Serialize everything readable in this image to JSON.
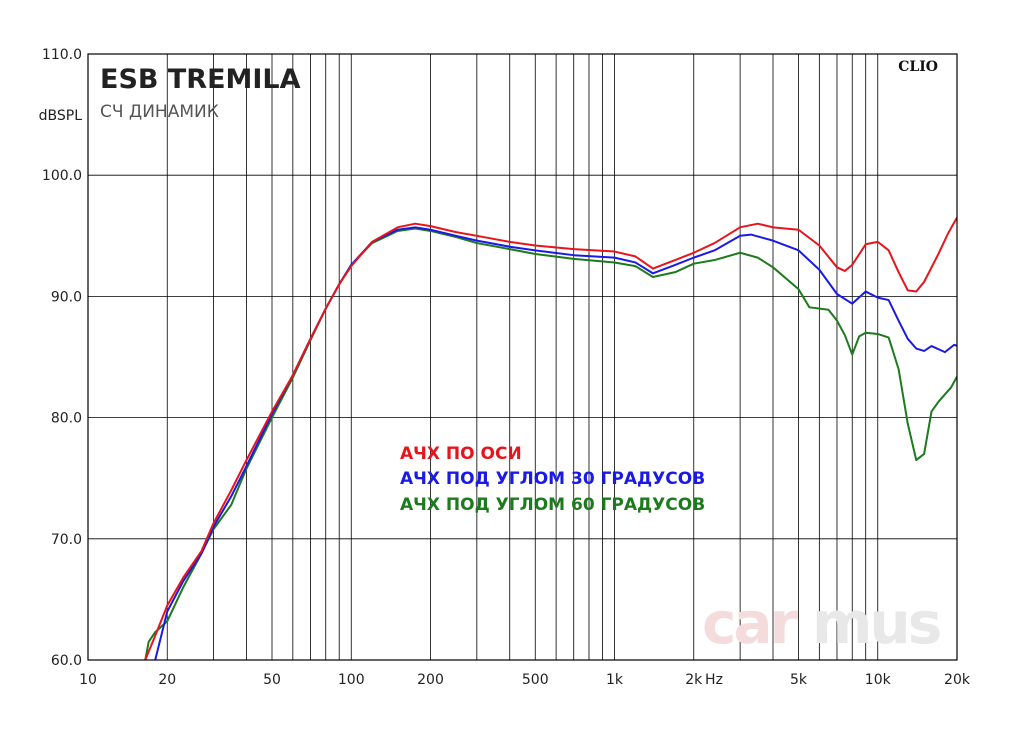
{
  "chart_data": {
    "type": "line",
    "title": "ESB TREMILA",
    "subtitle": "СЧ ДИНАМИК",
    "ylabel": "dBSPL",
    "xunit": "Hz",
    "brand": "CLIO",
    "watermark": [
      "car",
      "mus"
    ],
    "x_scale": "log",
    "xlim": [
      10,
      20000
    ],
    "ylim": [
      60,
      110
    ],
    "x_ticks": [
      10,
      20,
      50,
      100,
      200,
      500,
      1000,
      2000,
      5000,
      10000,
      20000
    ],
    "x_tick_labels": [
      "10",
      "20",
      "50",
      "100",
      "200",
      "500",
      "1k",
      "2k",
      "5k",
      "10k",
      "20k"
    ],
    "y_ticks": [
      60,
      70,
      80,
      90,
      100,
      110
    ],
    "y_tick_labels": [
      "60.0",
      "70.0",
      "80.0",
      "90.0",
      "100.0",
      "110.0"
    ],
    "grid": true,
    "series": [
      {
        "name": "АЧХ ПО ОСИ",
        "color": "#e8141b",
        "points": [
          [
            16.5,
            60
          ],
          [
            18,
            62
          ],
          [
            20,
            64.5
          ],
          [
            23,
            66.8
          ],
          [
            27,
            69
          ],
          [
            30,
            71.3
          ],
          [
            35,
            74
          ],
          [
            40,
            76.5
          ],
          [
            50,
            80.5
          ],
          [
            60,
            83.5
          ],
          [
            70,
            86.5
          ],
          [
            80,
            89
          ],
          [
            90,
            91
          ],
          [
            100,
            92.5
          ],
          [
            120,
            94.5
          ],
          [
            150,
            95.7
          ],
          [
            175,
            96
          ],
          [
            200,
            95.8
          ],
          [
            250,
            95.3
          ],
          [
            300,
            95
          ],
          [
            400,
            94.5
          ],
          [
            500,
            94.2
          ],
          [
            700,
            93.9
          ],
          [
            1000,
            93.7
          ],
          [
            1200,
            93.3
          ],
          [
            1400,
            92.3
          ],
          [
            1700,
            93
          ],
          [
            2000,
            93.6
          ],
          [
            2400,
            94.4
          ],
          [
            3000,
            95.7
          ],
          [
            3500,
            96
          ],
          [
            4000,
            95.7
          ],
          [
            5000,
            95.5
          ],
          [
            6000,
            94.2
          ],
          [
            7000,
            92.4
          ],
          [
            7500,
            92.1
          ],
          [
            8000,
            92.6
          ],
          [
            9000,
            94.3
          ],
          [
            10000,
            94.5
          ],
          [
            11000,
            93.8
          ],
          [
            12000,
            92
          ],
          [
            13000,
            90.5
          ],
          [
            14000,
            90.4
          ],
          [
            15000,
            91.2
          ],
          [
            17000,
            93.5
          ],
          [
            18500,
            95.2
          ],
          [
            20000,
            96.5
          ],
          [
            22000,
            97
          ]
        ]
      },
      {
        "name": "АЧХ ПОД УГЛОМ 30 ГРАДУСОВ",
        "color": "#1a1ae8",
        "points": [
          [
            18,
            60
          ],
          [
            20,
            64
          ],
          [
            23,
            66.5
          ],
          [
            27,
            68.8
          ],
          [
            30,
            71
          ],
          [
            35,
            73.5
          ],
          [
            40,
            76
          ],
          [
            50,
            80.3
          ],
          [
            60,
            83.5
          ],
          [
            70,
            86.5
          ],
          [
            80,
            89
          ],
          [
            90,
            91
          ],
          [
            100,
            92.6
          ],
          [
            120,
            94.5
          ],
          [
            150,
            95.5
          ],
          [
            175,
            95.7
          ],
          [
            200,
            95.5
          ],
          [
            250,
            95
          ],
          [
            300,
            94.6
          ],
          [
            400,
            94.1
          ],
          [
            500,
            93.8
          ],
          [
            700,
            93.4
          ],
          [
            1000,
            93.2
          ],
          [
            1200,
            92.8
          ],
          [
            1400,
            91.9
          ],
          [
            1700,
            92.6
          ],
          [
            2000,
            93.2
          ],
          [
            2400,
            93.8
          ],
          [
            3000,
            95
          ],
          [
            3300,
            95.1
          ],
          [
            4000,
            94.6
          ],
          [
            5000,
            93.8
          ],
          [
            6000,
            92.2
          ],
          [
            7000,
            90.2
          ],
          [
            8000,
            89.4
          ],
          [
            9000,
            90.4
          ],
          [
            10000,
            89.9
          ],
          [
            11000,
            89.7
          ],
          [
            12000,
            88
          ],
          [
            13000,
            86.5
          ],
          [
            14000,
            85.7
          ],
          [
            15000,
            85.5
          ],
          [
            16000,
            85.9
          ],
          [
            18000,
            85.4
          ],
          [
            19500,
            86
          ],
          [
            21000,
            85.8
          ],
          [
            22000,
            84.6
          ]
        ]
      },
      {
        "name": "АЧХ ПОД УГЛОМ 60 ГРАДУСОВ",
        "color": "#1d7a1d",
        "points": [
          [
            16.5,
            60
          ],
          [
            17,
            61.5
          ],
          [
            18,
            62.3
          ],
          [
            20,
            63.2
          ],
          [
            23,
            66
          ],
          [
            27,
            68.8
          ],
          [
            30,
            70.8
          ],
          [
            35,
            72.8
          ],
          [
            40,
            75.8
          ],
          [
            50,
            80
          ],
          [
            60,
            83.3
          ],
          [
            70,
            86.4
          ],
          [
            80,
            89
          ],
          [
            90,
            91
          ],
          [
            100,
            92.6
          ],
          [
            120,
            94.4
          ],
          [
            150,
            95.4
          ],
          [
            175,
            95.6
          ],
          [
            200,
            95.4
          ],
          [
            250,
            94.9
          ],
          [
            300,
            94.4
          ],
          [
            400,
            93.9
          ],
          [
            500,
            93.5
          ],
          [
            700,
            93.1
          ],
          [
            1000,
            92.8
          ],
          [
            1200,
            92.5
          ],
          [
            1400,
            91.6
          ],
          [
            1700,
            92
          ],
          [
            2000,
            92.7
          ],
          [
            2400,
            93
          ],
          [
            3000,
            93.6
          ],
          [
            3500,
            93.2
          ],
          [
            4000,
            92.4
          ],
          [
            5000,
            90.6
          ],
          [
            5500,
            89.1
          ],
          [
            6500,
            88.9
          ],
          [
            7000,
            88
          ],
          [
            7500,
            86.8
          ],
          [
            8000,
            85.2
          ],
          [
            8500,
            86.7
          ],
          [
            9000,
            87
          ],
          [
            10000,
            86.9
          ],
          [
            11000,
            86.6
          ],
          [
            12000,
            84
          ],
          [
            13000,
            79.5
          ],
          [
            14000,
            76.5
          ],
          [
            15000,
            77
          ],
          [
            16000,
            80.5
          ],
          [
            17000,
            81.3
          ],
          [
            19000,
            82.5
          ],
          [
            20500,
            83.8
          ],
          [
            22000,
            83.2
          ]
        ]
      }
    ]
  }
}
